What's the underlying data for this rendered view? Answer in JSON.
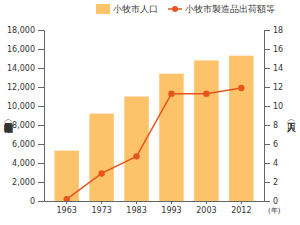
{
  "chart_data": {
    "type": "bar",
    "categories": [
      "1963",
      "1973",
      "1983",
      "1993",
      "2003",
      "2012"
    ],
    "xlabel": "(年)",
    "ylabel": "小牧市製造品出荷額等（億円）",
    "y2label": "人口（万人）",
    "ylim": [
      0,
      18000
    ],
    "yticks": [
      0,
      {
        "value": 2000,
        "label": "2,000"
      },
      {
        "value": 4000,
        "label": "4,000"
      },
      {
        "value": 6000,
        "label": "6,000"
      },
      {
        "value": 8000,
        "label": "8,000"
      },
      {
        "value": 10000,
        "label": "10,000"
      },
      {
        "value": 12000,
        "label": "12,000"
      },
      {
        "value": 14000,
        "label": "14,000"
      },
      {
        "value": 16000,
        "label": "16,000"
      },
      {
        "value": 18000,
        "label": "18,000"
      }
    ],
    "y2lim": [
      0,
      18
    ],
    "y2ticks": [
      0,
      2,
      4,
      6,
      8,
      10,
      12,
      14,
      16,
      18
    ],
    "legend": "top",
    "series": [
      {
        "name": "小牧市人口",
        "type": "bar",
        "axis": "y2",
        "color": "#fdc36b",
        "values": [
          5.3,
          9.2,
          11.0,
          13.4,
          14.8,
          15.3
        ]
      },
      {
        "name": "小牧市製造品出荷額等",
        "type": "line",
        "axis": "y",
        "color": "#e8541e",
        "marker": "circle",
        "values": [
          200,
          2900,
          4700,
          11300,
          11300,
          11900
        ]
      }
    ]
  }
}
